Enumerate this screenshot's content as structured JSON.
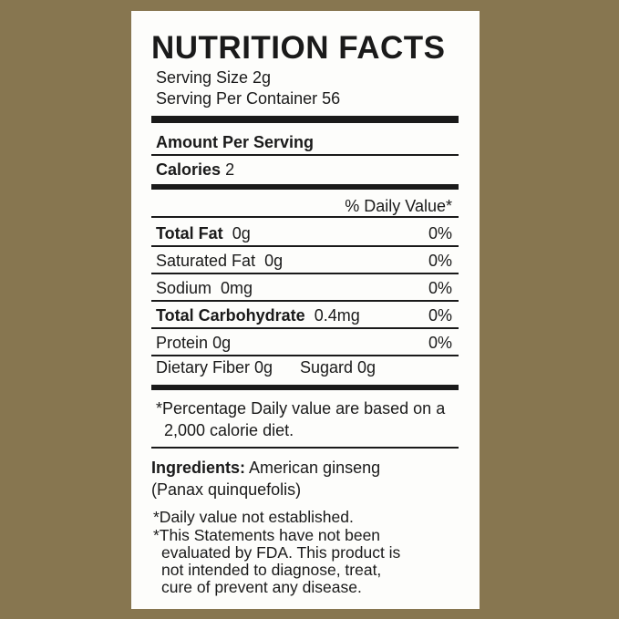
{
  "title": "NUTRITION FACTS",
  "serving_size": "Serving Size  2g",
  "servings_per_container": "Serving Per Container  56",
  "amount_per_serving": "Amount Per Serving",
  "calories": {
    "label": "Calories",
    "value": "2"
  },
  "daily_value_header": "% Daily Value*",
  "rows": [
    {
      "label": "Total Fat",
      "value": "0g",
      "dv": "0%"
    },
    {
      "label": "Saturated Fat",
      "value": "0g",
      "dv": "0%"
    },
    {
      "label": "Sodium",
      "value": "0mg",
      "dv": "0%"
    },
    {
      "label": "Total Carbohydrate",
      "value": "0.4mg",
      "dv": "0%"
    },
    {
      "label": "Protein",
      "value": "0g",
      "dv": "0%"
    }
  ],
  "fiber": "Dietary Fiber 0g",
  "sugar": "Sugard 0g",
  "footnote_line1": "*Percentage Daily value are based on a",
  "footnote_line2": "2,000 calorie diet.",
  "ingredients_label": "Ingredients:",
  "ingredients_value": "American ginseng",
  "ingredients_line2": "(Panax quinquefolis)",
  "disclaimers": [
    "*Daily value not established.",
    "*This Statements have not been",
    "evaluated by FDA. This product is",
    "not intended to diagnose, treat,",
    "cure of prevent any disease."
  ]
}
